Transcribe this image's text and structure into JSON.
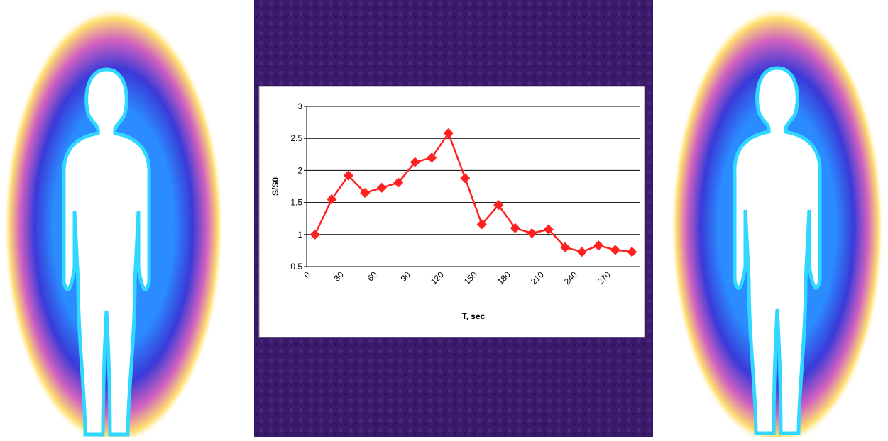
{
  "chart_data": {
    "type": "line",
    "x_label": "T, sec",
    "y_label": "S/S0",
    "categories": [
      "0",
      null,
      "30",
      null,
      "60",
      null,
      "90",
      null,
      "120",
      null,
      "150",
      null,
      "180",
      null,
      "210",
      null,
      "240",
      null,
      "270",
      null
    ],
    "values": [
      1.0,
      1.55,
      1.92,
      1.65,
      1.73,
      1.81,
      2.13,
      2.2,
      2.58,
      1.88,
      1.16,
      1.46,
      1.1,
      1.02,
      1.08,
      0.8,
      0.73,
      0.83,
      0.76,
      0.73
    ],
    "color": "#ff2020",
    "ylim": [
      0.5,
      3
    ],
    "yticks": [
      0.5,
      1,
      1.5,
      2,
      2.5,
      3
    ],
    "grid": true
  }
}
